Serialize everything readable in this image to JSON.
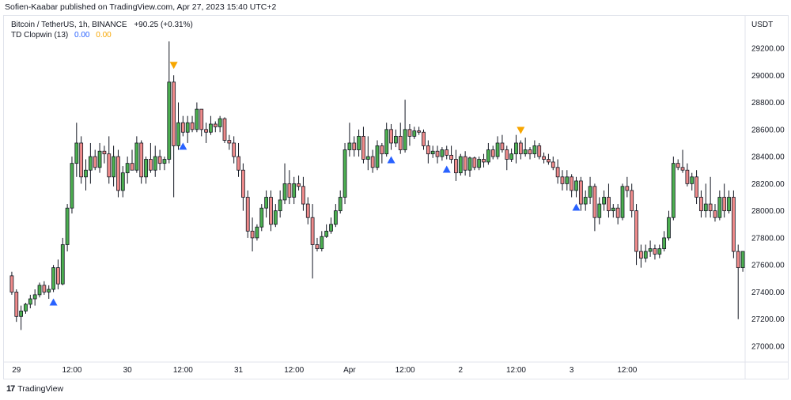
{
  "header": {
    "publisher_text": "Sofien-Kaabar published on TradingView.com, Apr 27, 2023 15:40 UTC+2"
  },
  "legend": {
    "symbol_line": "Bitcoin / TetherUS, 1h, BINANCE",
    "change": "+90.25 (+0.31%)",
    "indicator_name": "TD Clopwin (13)",
    "indicator_value_1": "0.00",
    "indicator_value_2": "0.00"
  },
  "price_axis": {
    "currency": "USDT"
  },
  "footer": {
    "brand": "TradingView",
    "logo_mark": "17"
  },
  "colors": {
    "up": "#4caf50",
    "down": "#ef8b8b",
    "buy_signal": "#2962ff",
    "sell_signal": "#f7a600"
  },
  "chart_data": {
    "type": "candlestick",
    "symbol": "BTC/USDT",
    "interval": "1h",
    "ylim": [
      26850,
      29400
    ],
    "y_ticks": [
      "27000.00",
      "27200.00",
      "27400.00",
      "27600.00",
      "27800.00",
      "28000.00",
      "28200.00",
      "28400.00",
      "28600.00",
      "28800.00",
      "29000.00",
      "29200.00"
    ],
    "x_ticks": [
      {
        "label": "29",
        "index": 1
      },
      {
        "label": "12:00",
        "index": 13
      },
      {
        "label": "30",
        "index": 25
      },
      {
        "label": "12:00",
        "index": 37
      },
      {
        "label": "31",
        "index": 49
      },
      {
        "label": "12:00",
        "index": 61
      },
      {
        "label": "Apr",
        "index": 73
      },
      {
        "label": "12:00",
        "index": 85
      },
      {
        "label": "2",
        "index": 97
      },
      {
        "label": "12:00",
        "index": 109
      },
      {
        "label": "3",
        "index": 121
      },
      {
        "label": "12:00",
        "index": 133
      }
    ],
    "candles": [
      [
        27520,
        27550,
        27380,
        27400
      ],
      [
        27400,
        27420,
        27180,
        27220
      ],
      [
        27220,
        27300,
        27120,
        27260
      ],
      [
        27260,
        27320,
        27240,
        27310
      ],
      [
        27310,
        27380,
        27280,
        27350
      ],
      [
        27350,
        27420,
        27300,
        27380
      ],
      [
        27380,
        27470,
        27360,
        27450
      ],
      [
        27450,
        27480,
        27380,
        27400
      ],
      [
        27400,
        27450,
        27350,
        27420
      ],
      [
        27420,
        27600,
        27400,
        27580
      ],
      [
        27580,
        27640,
        27420,
        27460
      ],
      [
        27460,
        27800,
        27450,
        27750
      ],
      [
        27750,
        28050,
        27700,
        28020
      ],
      [
        28020,
        28400,
        27980,
        28350
      ],
      [
        28350,
        28650,
        28250,
        28500
      ],
      [
        28500,
        28550,
        28200,
        28250
      ],
      [
        28250,
        28380,
        28150,
        28300
      ],
      [
        28300,
        28500,
        28200,
        28400
      ],
      [
        28400,
        28450,
        28300,
        28320
      ],
      [
        28320,
        28500,
        28280,
        28440
      ],
      [
        28440,
        28480,
        28350,
        28420
      ],
      [
        28420,
        28550,
        28200,
        28250
      ],
      [
        28250,
        28480,
        28180,
        28400
      ],
      [
        28400,
        28450,
        28100,
        28150
      ],
      [
        28150,
        28330,
        28100,
        28280
      ],
      [
        28280,
        28400,
        28200,
        28350
      ],
      [
        28350,
        28450,
        28300,
        28300
      ],
      [
        28300,
        28550,
        28280,
        28500
      ],
      [
        28500,
        28520,
        28200,
        28250
      ],
      [
        28250,
        28400,
        28200,
        28380
      ],
      [
        28380,
        28500,
        28280,
        28300
      ],
      [
        28300,
        28480,
        28250,
        28400
      ],
      [
        28400,
        28450,
        28300,
        28350
      ],
      [
        28350,
        28400,
        28300,
        28380
      ],
      [
        28380,
        29250,
        28350,
        28950
      ],
      [
        28950,
        29000,
        28100,
        28480
      ],
      [
        28480,
        28800,
        28450,
        28650
      ],
      [
        28650,
        28700,
        28550,
        28580
      ],
      [
        28580,
        28700,
        28500,
        28650
      ],
      [
        28650,
        28700,
        28580,
        28600
      ],
      [
        28600,
        28800,
        28580,
        28750
      ],
      [
        28750,
        28750,
        28550,
        28600
      ],
      [
        28600,
        28650,
        28500,
        28580
      ],
      [
        28580,
        28700,
        28560,
        28640
      ],
      [
        28640,
        28660,
        28580,
        28620
      ],
      [
        28620,
        28700,
        28580,
        28680
      ],
      [
        28680,
        28690,
        28500,
        28520
      ],
      [
        28520,
        28560,
        28450,
        28500
      ],
      [
        28500,
        28550,
        28350,
        28400
      ],
      [
        28400,
        28500,
        28250,
        28300
      ],
      [
        28300,
        28350,
        28000,
        28100
      ],
      [
        28100,
        28150,
        27800,
        27850
      ],
      [
        27850,
        27950,
        27700,
        27800
      ],
      [
        27800,
        27900,
        27780,
        27880
      ],
      [
        27880,
        28050,
        27850,
        28020
      ],
      [
        28020,
        28150,
        27950,
        28100
      ],
      [
        28100,
        28150,
        27850,
        27900
      ],
      [
        27900,
        28050,
        27880,
        28000
      ],
      [
        28000,
        28150,
        27950,
        28080
      ],
      [
        28080,
        28350,
        28050,
        28200
      ],
      [
        28200,
        28300,
        28050,
        28100
      ],
      [
        28100,
        28250,
        28050,
        28200
      ],
      [
        28200,
        28260,
        28150,
        28180
      ],
      [
        28180,
        28250,
        28000,
        28050
      ],
      [
        28050,
        28100,
        27900,
        27950
      ],
      [
        27950,
        28050,
        27500,
        27750
      ],
      [
        27750,
        27800,
        27700,
        27720
      ],
      [
        27720,
        27850,
        27700,
        27810
      ],
      [
        27810,
        27900,
        27800,
        27850
      ],
      [
        27850,
        27950,
        27830,
        27900
      ],
      [
        27900,
        28050,
        27880,
        28000
      ],
      [
        28000,
        28150,
        27980,
        28100
      ],
      [
        28100,
        28500,
        28050,
        28450
      ],
      [
        28450,
        28650,
        28400,
        28500
      ],
      [
        28500,
        28550,
        28400,
        28450
      ],
      [
        28450,
        28600,
        28400,
        28550
      ],
      [
        28550,
        28620,
        28350,
        28380
      ],
      [
        28380,
        28550,
        28300,
        28400
      ],
      [
        28400,
        28450,
        28280,
        28320
      ],
      [
        28320,
        28520,
        28300,
        28480
      ],
      [
        28480,
        28500,
        28350,
        28420
      ],
      [
        28420,
        28650,
        28400,
        28600
      ],
      [
        28600,
        28640,
        28450,
        28500
      ],
      [
        28500,
        28600,
        28470,
        28550
      ],
      [
        28550,
        28650,
        28420,
        28450
      ],
      [
        28450,
        28820,
        28430,
        28600
      ],
      [
        28600,
        28640,
        28480,
        28550
      ],
      [
        28550,
        28620,
        28530,
        28590
      ],
      [
        28590,
        28620,
        28560,
        28580
      ],
      [
        28580,
        28600,
        28450,
        28480
      ],
      [
        28480,
        28520,
        28350,
        28420
      ],
      [
        28420,
        28480,
        28390,
        28440
      ],
      [
        28440,
        28480,
        28350,
        28400
      ],
      [
        28400,
        28470,
        28370,
        28450
      ],
      [
        28450,
        28480,
        28380,
        28410
      ],
      [
        28410,
        28480,
        28350,
        28380
      ],
      [
        28380,
        28450,
        28220,
        28280
      ],
      [
        28280,
        28420,
        28260,
        28400
      ],
      [
        28400,
        28440,
        28260,
        28300
      ],
      [
        28300,
        28400,
        28250,
        28390
      ],
      [
        28390,
        28400,
        28300,
        28320
      ],
      [
        28320,
        28400,
        28300,
        28380
      ],
      [
        28380,
        28420,
        28320,
        28360
      ],
      [
        28360,
        28500,
        28340,
        28450
      ],
      [
        28450,
        28480,
        28380,
        28400
      ],
      [
        28400,
        28550,
        28380,
        28500
      ],
      [
        28500,
        28560,
        28430,
        28450
      ],
      [
        28450,
        28480,
        28300,
        28380
      ],
      [
        28380,
        28460,
        28360,
        28420
      ],
      [
        28420,
        28560,
        28350,
        28500
      ],
      [
        28500,
        28520,
        28380,
        28420
      ],
      [
        28420,
        28540,
        28400,
        28450
      ],
      [
        28450,
        28470,
        28380,
        28420
      ],
      [
        28420,
        28520,
        28390,
        28480
      ],
      [
        28480,
        28500,
        28380,
        28400
      ],
      [
        28400,
        28430,
        28350,
        28380
      ],
      [
        28380,
        28420,
        28340,
        28360
      ],
      [
        28360,
        28400,
        28300,
        28320
      ],
      [
        28320,
        28380,
        28200,
        28250
      ],
      [
        28250,
        28300,
        28150,
        28200
      ],
      [
        28200,
        28300,
        28150,
        28250
      ],
      [
        28250,
        28270,
        28100,
        28150
      ],
      [
        28150,
        28250,
        28100,
        28220
      ],
      [
        28220,
        28250,
        28000,
        28050
      ],
      [
        28050,
        28150,
        28000,
        28100
      ],
      [
        28100,
        28250,
        28050,
        28180
      ],
      [
        28180,
        28200,
        27850,
        27950
      ],
      [
        27950,
        28100,
        27900,
        28050
      ],
      [
        28050,
        28150,
        28000,
        28100
      ],
      [
        28100,
        28200,
        27950,
        28000
      ],
      [
        28000,
        28050,
        27950,
        28020
      ],
      [
        28020,
        28050,
        27900,
        27950
      ],
      [
        27950,
        28200,
        27930,
        28180
      ],
      [
        28180,
        28250,
        28100,
        28150
      ],
      [
        28150,
        28200,
        27950,
        28000
      ],
      [
        28000,
        28050,
        27600,
        27700
      ],
      [
        27700,
        27750,
        27580,
        27650
      ],
      [
        27650,
        27750,
        27620,
        27700
      ],
      [
        27700,
        27780,
        27660,
        27720
      ],
      [
        27720,
        27750,
        27640,
        27680
      ],
      [
        27680,
        27750,
        27650,
        27720
      ],
      [
        27720,
        27850,
        27700,
        27800
      ],
      [
        27800,
        28000,
        27780,
        27950
      ],
      [
        27950,
        28400,
        27930,
        28350
      ],
      [
        28350,
        28380,
        28300,
        28320
      ],
      [
        28320,
        28450,
        28280,
        28300
      ],
      [
        28300,
        28350,
        28180,
        28200
      ],
      [
        28200,
        28280,
        28150,
        28250
      ],
      [
        28250,
        28300,
        28050,
        28100
      ],
      [
        28100,
        28150,
        27950,
        28000
      ],
      [
        28000,
        28200,
        27950,
        28050
      ],
      [
        28050,
        28250,
        27950,
        28000
      ],
      [
        28000,
        28050,
        27920,
        27950
      ],
      [
        27950,
        28150,
        27930,
        28100
      ],
      [
        28100,
        28200,
        27950,
        28000
      ],
      [
        28000,
        28150,
        27980,
        28100
      ],
      [
        28100,
        28150,
        27650,
        27700
      ],
      [
        27700,
        27750,
        27200,
        27580
      ],
      [
        27580,
        27700,
        27550,
        27700
      ]
    ],
    "signals": [
      {
        "index": 9,
        "type": "buy"
      },
      {
        "index": 35,
        "type": "sell"
      },
      {
        "index": 37,
        "type": "buy"
      },
      {
        "index": 82,
        "type": "buy"
      },
      {
        "index": 94,
        "type": "buy"
      },
      {
        "index": 110,
        "type": "sell"
      },
      {
        "index": 122,
        "type": "buy"
      }
    ]
  }
}
